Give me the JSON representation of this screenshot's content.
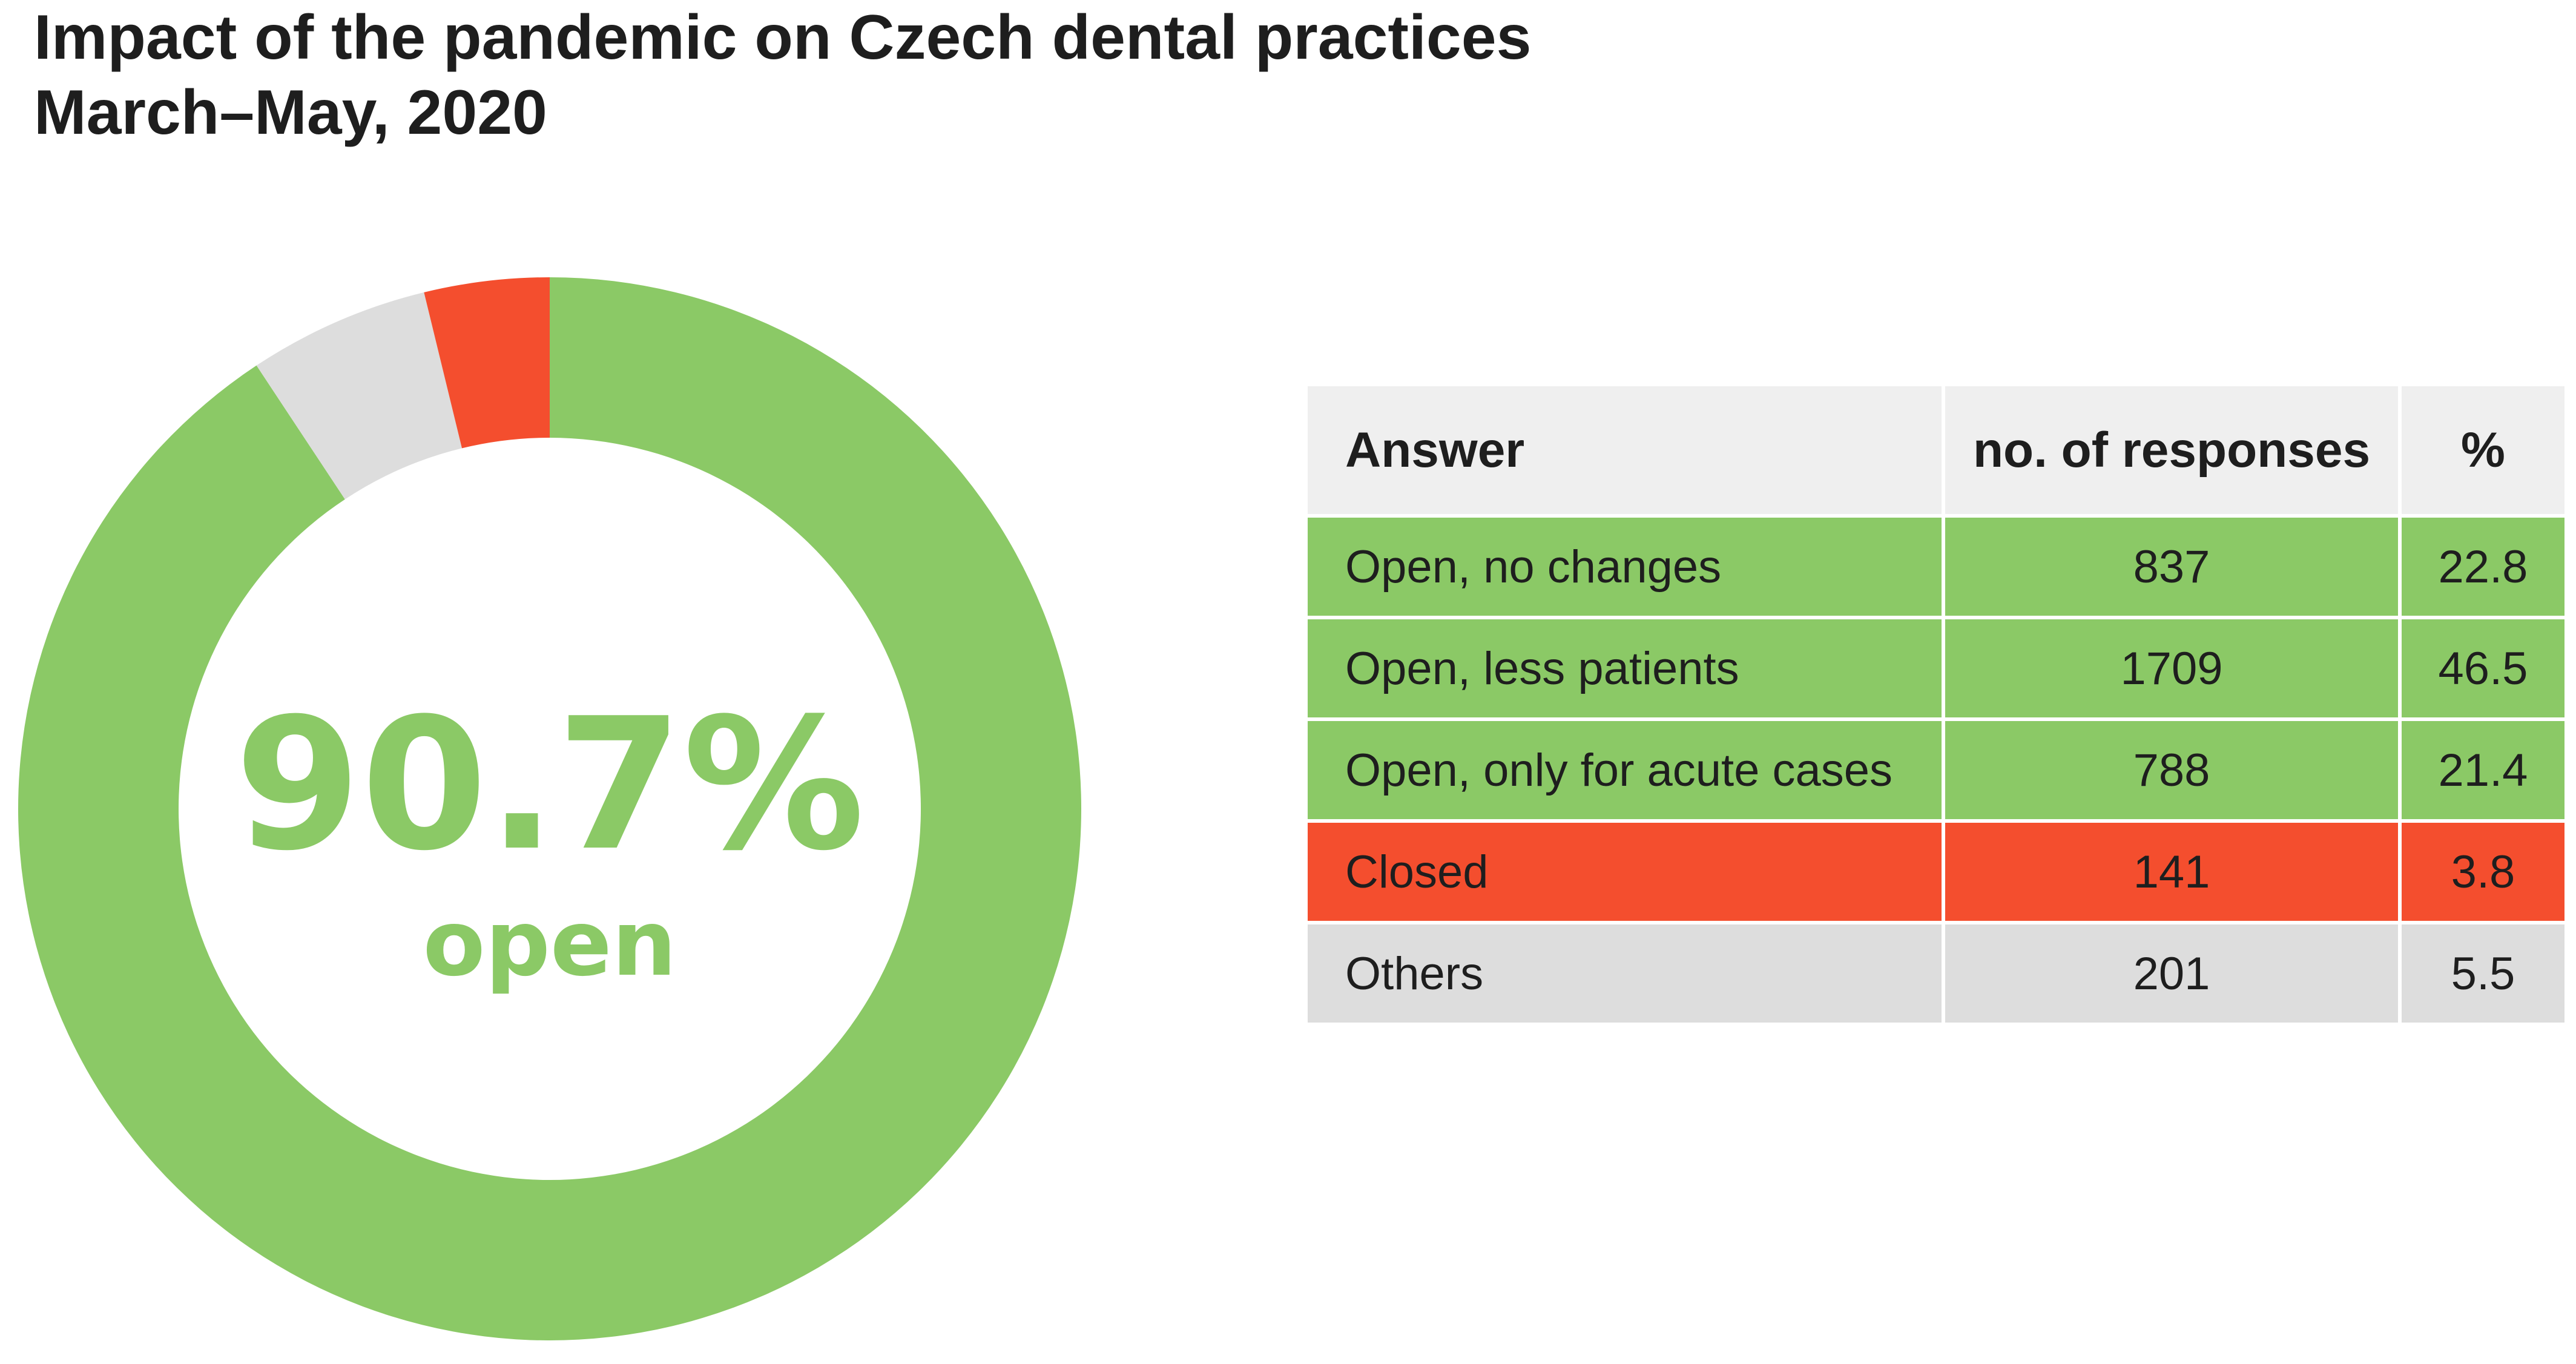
{
  "title": {
    "line1": "Impact of the pandemic on Czech dental practices",
    "line2": "March–May, 2020"
  },
  "donut": {
    "center_value": "90.7%",
    "center_label": "open"
  },
  "colors": {
    "open": "#8bc966",
    "closed": "#f44e2e",
    "others": "#dddddd",
    "header": "#efefef"
  },
  "table": {
    "headers": {
      "answer": "Answer",
      "responses": "no. of responses",
      "percent": "%"
    },
    "rows": [
      {
        "answer": "Open, no changes",
        "responses": "837",
        "percent": "22.8",
        "group": "open"
      },
      {
        "answer": "Open, less patients",
        "responses": "1709",
        "percent": "46.5",
        "group": "open"
      },
      {
        "answer": "Open, only for acute cases",
        "responses": "788",
        "percent": "21.4",
        "group": "open"
      },
      {
        "answer": "Closed",
        "responses": "141",
        "percent": "3.8",
        "group": "closed"
      },
      {
        "answer": "Others",
        "responses": "201",
        "percent": "5.5",
        "group": "others"
      }
    ]
  },
  "chart_data": {
    "type": "pie",
    "title": "Impact of the pandemic on Czech dental practices",
    "subtitle": "March–May, 2020",
    "slices": [
      {
        "label": "open",
        "value": 90.7,
        "color": "#8bc966"
      },
      {
        "label": "Others",
        "value": 5.5,
        "color": "#dddddd"
      },
      {
        "label": "Closed",
        "value": 3.8,
        "color": "#f44e2e"
      }
    ]
  }
}
